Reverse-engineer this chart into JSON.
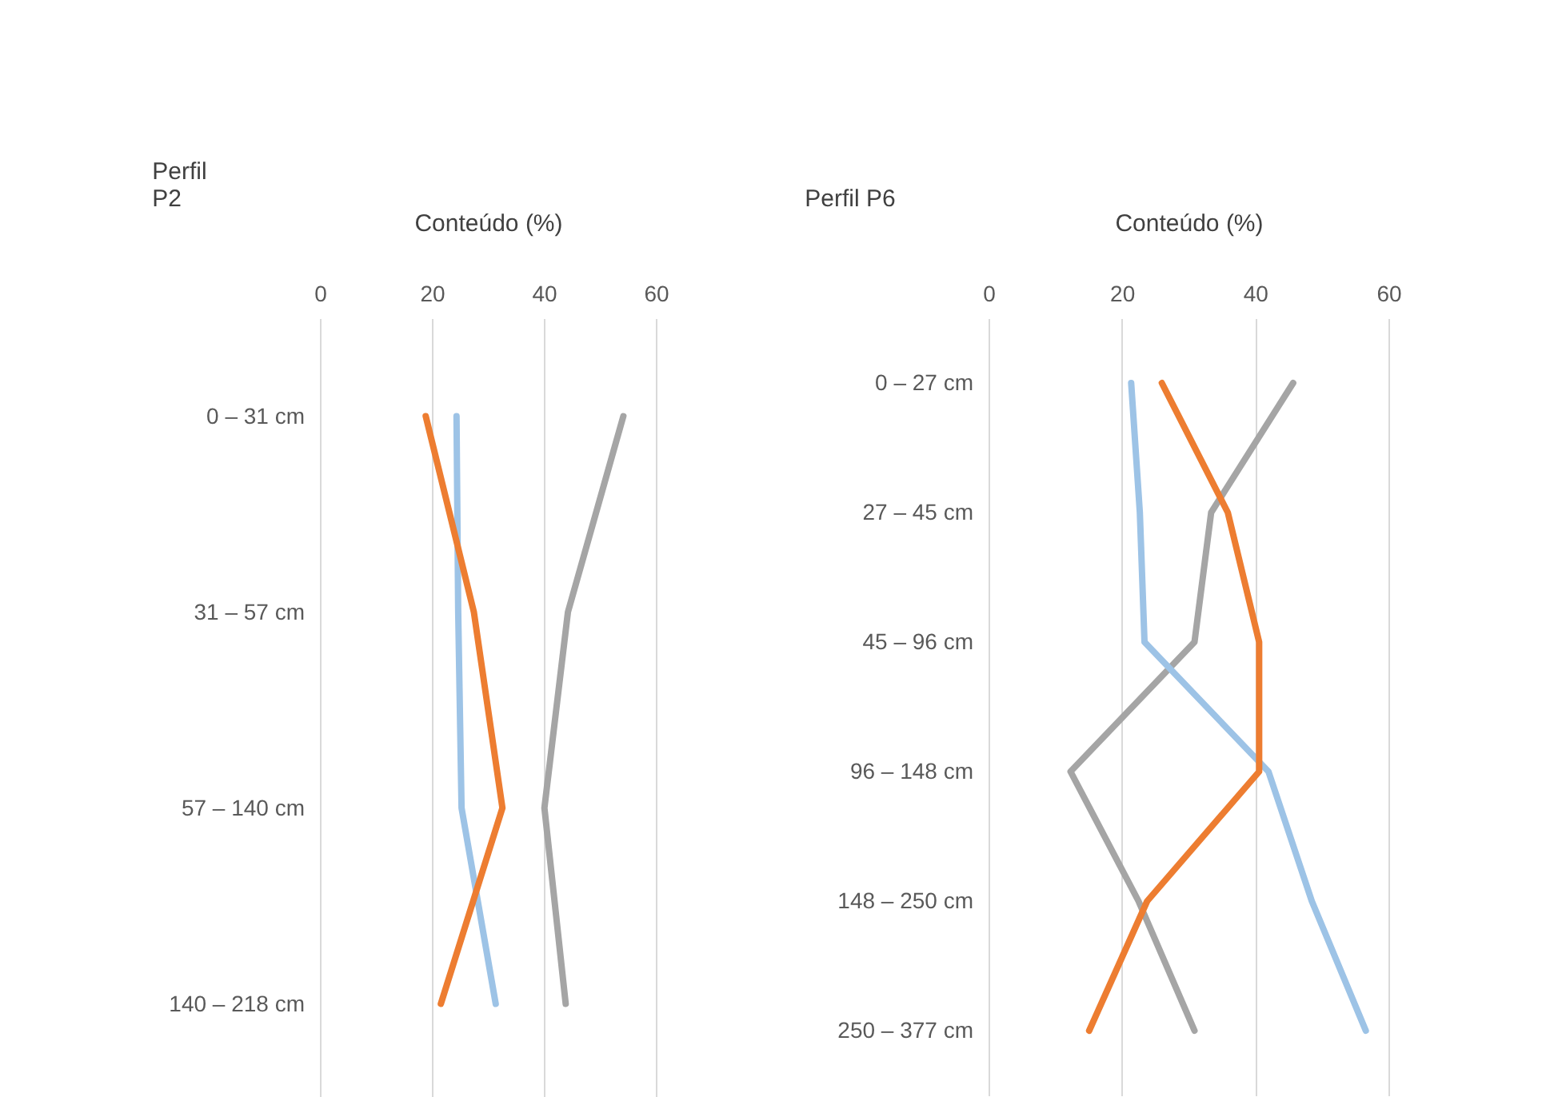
{
  "chart_data": [
    {
      "type": "line",
      "orientation": "horizontal",
      "title": [
        "Perfil",
        "P2"
      ],
      "xlabel": "Conteúdo (%)",
      "categories": [
        "0 – 31 cm",
        "31 – 57 cm",
        "57 – 140 cm",
        "140 – 218 cm"
      ],
      "series": [
        {
          "color": "#a5a5a5",
          "values": [
            54.2,
            44.3,
            40.1,
            43.9
          ]
        },
        {
          "color": "#9dc3e6",
          "values": [
            24.4,
            24.7,
            25.3,
            31.4
          ]
        },
        {
          "color": "#ed7d31",
          "values": [
            18.9,
            27.5,
            32.6,
            21.6
          ]
        }
      ],
      "xlim": [
        0,
        60
      ],
      "xticks": [
        0,
        20,
        40,
        60
      ],
      "grid": "x"
    },
    {
      "type": "line",
      "orientation": "horizontal",
      "title": "Perfil P6",
      "xlabel": "Conteúdo (%)",
      "categories": [
        "0 – 27 cm",
        "27 – 45 cm",
        "45 – 96 cm",
        "96 – 148 cm",
        "148 – 250 cm",
        "250 – 377 cm"
      ],
      "series": [
        {
          "color": "#a5a5a5",
          "values": [
            45.7,
            33.4,
            30.9,
            12.3,
            22.5,
            30.9
          ]
        },
        {
          "color": "#9dc3e6",
          "values": [
            21.4,
            22.7,
            23.4,
            42.0,
            48.5,
            56.6
          ]
        },
        {
          "color": "#ed7d31",
          "values": [
            26.0,
            35.9,
            40.6,
            40.6,
            23.8,
            15.1
          ]
        }
      ],
      "xlim": [
        0,
        60
      ],
      "xticks": [
        0,
        20,
        40,
        60
      ],
      "grid": "x"
    }
  ]
}
